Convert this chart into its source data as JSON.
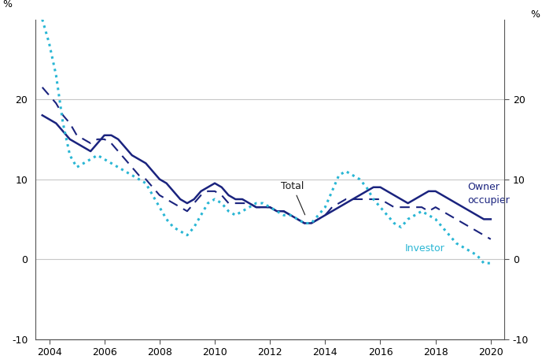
{
  "title": "",
  "xlabel": "",
  "ylabel_left": "%",
  "ylabel_right": "%",
  "ylim": [
    -10,
    30
  ],
  "yticks": [
    -10,
    0,
    10,
    20
  ],
  "xlim": [
    2003.5,
    2020.5
  ],
  "xticks": [
    2004,
    2006,
    2008,
    2010,
    2012,
    2014,
    2016,
    2018,
    2020
  ],
  "background_color": "#ffffff",
  "grid_color": "#c8c8c8",
  "owner_occupier": {
    "color": "#1a237e",
    "linewidth": 1.8,
    "label": "Owner\noccupier",
    "x": [
      2003.75,
      2004.0,
      2004.25,
      2004.5,
      2004.75,
      2005.0,
      2005.25,
      2005.5,
      2005.75,
      2006.0,
      2006.25,
      2006.5,
      2006.75,
      2007.0,
      2007.25,
      2007.5,
      2007.75,
      2008.0,
      2008.25,
      2008.5,
      2008.75,
      2009.0,
      2009.25,
      2009.5,
      2009.75,
      2010.0,
      2010.25,
      2010.5,
      2010.75,
      2011.0,
      2011.25,
      2011.5,
      2011.75,
      2012.0,
      2012.25,
      2012.5,
      2012.75,
      2013.0,
      2013.25,
      2013.5,
      2013.75,
      2014.0,
      2014.25,
      2014.5,
      2014.75,
      2015.0,
      2015.25,
      2015.5,
      2015.75,
      2016.0,
      2016.25,
      2016.5,
      2016.75,
      2017.0,
      2017.25,
      2017.5,
      2017.75,
      2018.0,
      2018.25,
      2018.5,
      2018.75,
      2019.0,
      2019.25,
      2019.5,
      2019.75,
      2020.0
    ],
    "y": [
      18.0,
      17.5,
      17.0,
      16.0,
      15.0,
      14.5,
      14.0,
      13.5,
      14.5,
      15.5,
      15.5,
      15.0,
      14.0,
      13.0,
      12.5,
      12.0,
      11.0,
      10.0,
      9.5,
      8.5,
      7.5,
      7.0,
      7.5,
      8.5,
      9.0,
      9.5,
      9.0,
      8.0,
      7.5,
      7.5,
      7.0,
      6.5,
      6.5,
      6.5,
      6.0,
      6.0,
      5.5,
      5.0,
      4.5,
      4.5,
      5.0,
      5.5,
      6.0,
      6.5,
      7.0,
      7.5,
      8.0,
      8.5,
      9.0,
      9.0,
      8.5,
      8.0,
      7.5,
      7.0,
      7.5,
      8.0,
      8.5,
      8.5,
      8.0,
      7.5,
      7.0,
      6.5,
      6.0,
      5.5,
      5.0,
      5.0
    ]
  },
  "total": {
    "color": "#1a237e",
    "linewidth": 1.5,
    "label": "Total",
    "x": [
      2003.75,
      2004.0,
      2004.25,
      2004.5,
      2004.75,
      2005.0,
      2005.25,
      2005.5,
      2005.75,
      2006.0,
      2006.25,
      2006.5,
      2006.75,
      2007.0,
      2007.25,
      2007.5,
      2007.75,
      2008.0,
      2008.25,
      2008.5,
      2008.75,
      2009.0,
      2009.25,
      2009.5,
      2009.75,
      2010.0,
      2010.25,
      2010.5,
      2010.75,
      2011.0,
      2011.25,
      2011.5,
      2011.75,
      2012.0,
      2012.25,
      2012.5,
      2012.75,
      2013.0,
      2013.25,
      2013.5,
      2013.75,
      2014.0,
      2014.25,
      2014.5,
      2014.75,
      2015.0,
      2015.25,
      2015.5,
      2015.75,
      2016.0,
      2016.25,
      2016.5,
      2016.75,
      2017.0,
      2017.25,
      2017.5,
      2017.75,
      2018.0,
      2018.25,
      2018.5,
      2018.75,
      2019.0,
      2019.25,
      2019.5,
      2019.75,
      2020.0
    ],
    "y": [
      21.5,
      20.5,
      19.5,
      18.0,
      17.0,
      15.5,
      15.0,
      14.5,
      15.0,
      15.0,
      14.5,
      13.5,
      12.5,
      11.5,
      10.5,
      10.0,
      9.0,
      8.0,
      7.5,
      7.0,
      6.5,
      6.0,
      7.0,
      8.0,
      8.5,
      8.5,
      8.0,
      7.0,
      7.0,
      7.0,
      7.0,
      6.5,
      6.5,
      6.5,
      6.0,
      6.0,
      5.5,
      5.0,
      4.5,
      4.5,
      5.0,
      5.5,
      6.5,
      7.0,
      7.5,
      7.5,
      7.5,
      7.5,
      7.5,
      7.5,
      7.0,
      6.5,
      6.5,
      6.5,
      6.5,
      6.5,
      6.0,
      6.5,
      6.0,
      5.5,
      5.0,
      4.5,
      4.0,
      3.5,
      3.0,
      2.5
    ]
  },
  "investor": {
    "color": "#29b6d4",
    "linewidth": 2.2,
    "label": "Investor",
    "x": [
      2003.75,
      2004.0,
      2004.25,
      2004.5,
      2004.75,
      2005.0,
      2005.25,
      2005.5,
      2005.75,
      2006.0,
      2006.25,
      2006.5,
      2006.75,
      2007.0,
      2007.25,
      2007.5,
      2007.75,
      2008.0,
      2008.25,
      2008.5,
      2008.75,
      2009.0,
      2009.25,
      2009.5,
      2009.75,
      2010.0,
      2010.25,
      2010.5,
      2010.75,
      2011.0,
      2011.25,
      2011.5,
      2011.75,
      2012.0,
      2012.25,
      2012.5,
      2012.75,
      2013.0,
      2013.25,
      2013.5,
      2013.75,
      2014.0,
      2014.25,
      2014.5,
      2014.75,
      2015.0,
      2015.25,
      2015.5,
      2015.75,
      2016.0,
      2016.25,
      2016.5,
      2016.75,
      2017.0,
      2017.25,
      2017.5,
      2017.75,
      2018.0,
      2018.25,
      2018.5,
      2018.75,
      2019.0,
      2019.25,
      2019.5,
      2019.75,
      2020.0
    ],
    "y": [
      30.0,
      27.0,
      23.0,
      17.0,
      13.0,
      11.5,
      12.0,
      12.5,
      13.0,
      12.5,
      12.0,
      11.5,
      11.0,
      10.5,
      10.0,
      9.5,
      8.0,
      6.5,
      5.0,
      4.0,
      3.5,
      3.0,
      4.0,
      5.5,
      7.0,
      7.5,
      7.0,
      6.0,
      5.5,
      6.0,
      6.5,
      7.0,
      7.0,
      6.5,
      6.0,
      5.5,
      5.5,
      5.0,
      4.5,
      4.5,
      5.5,
      6.5,
      8.5,
      10.5,
      11.0,
      10.5,
      10.0,
      9.0,
      7.5,
      6.5,
      5.5,
      4.5,
      4.0,
      5.0,
      5.5,
      6.0,
      5.5,
      5.0,
      4.0,
      3.0,
      2.0,
      1.5,
      1.0,
      0.5,
      -0.5,
      -0.5
    ]
  }
}
